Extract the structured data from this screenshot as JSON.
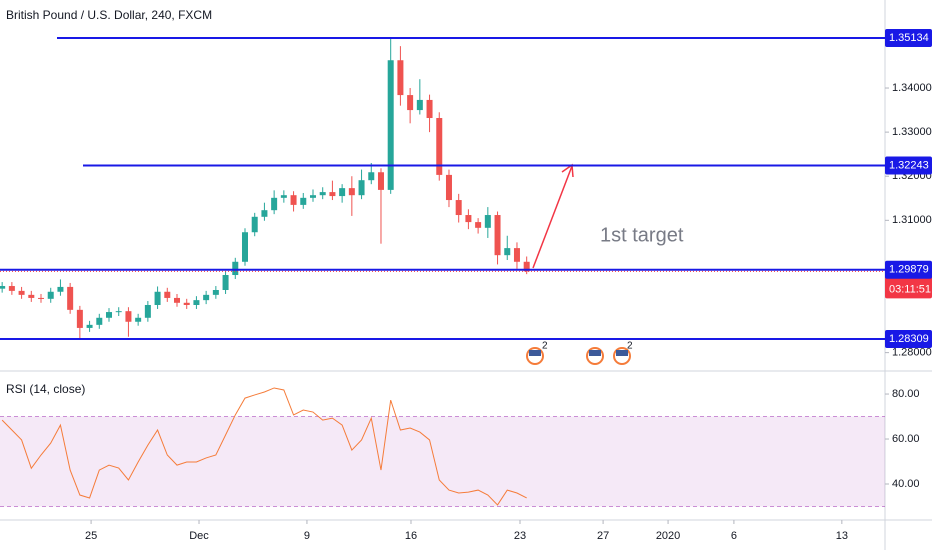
{
  "chart_data": [
    {
      "type": "candlestick",
      "title": "British Pound / U.S. Dollar, 240, FXCM",
      "x": [
        0.1,
        0.55,
        1,
        1.45,
        1.9,
        2.35,
        2.8,
        3.25,
        3.7,
        4.15,
        4.6,
        5.05,
        5.5,
        5.95,
        6.4,
        6.85,
        7.3,
        7.75,
        8.2,
        8.65,
        9.1,
        9.55,
        10,
        10.45,
        10.9,
        11.35,
        11.8,
        12.25,
        12.7,
        13.15,
        13.6,
        14.05,
        14.5,
        14.95,
        15.4,
        15.85,
        16.3,
        16.75,
        17.2,
        17.65,
        18.1,
        18.55,
        19,
        19.45,
        19.9,
        20.35,
        20.8,
        21.25,
        21.7,
        22.15,
        22.6,
        23.05,
        23.5,
        23.95,
        24.4
      ],
      "open": [
        1.2945,
        1.2951,
        1.294,
        1.2931,
        1.2924,
        1.2922,
        1.2938,
        1.2949,
        1.2897,
        1.2856,
        1.2863,
        1.2879,
        1.2892,
        1.2894,
        1.287,
        1.2879,
        1.2908,
        1.2938,
        1.2924,
        1.2913,
        1.2908,
        1.2919,
        1.2931,
        1.2942,
        1.2976,
        1.3006,
        1.3073,
        1.3108,
        1.3123,
        1.3151,
        1.3157,
        1.3135,
        1.3151,
        1.3157,
        1.3164,
        1.3155,
        1.3173,
        1.3157,
        1.3191,
        1.3209,
        1.3169,
        1.3463,
        1.3384,
        1.335,
        1.3373,
        1.3332,
        1.3203,
        1.3146,
        1.3112,
        1.3096,
        1.3083,
        1.3112,
        1.3021,
        1.3037,
        1.3006
      ],
      "high": [
        1.296,
        1.296,
        1.2949,
        1.294,
        1.2933,
        1.2947,
        1.2966,
        1.2958,
        1.2906,
        1.2872,
        1.2888,
        1.2901,
        1.2903,
        1.2903,
        1.2888,
        1.2917,
        1.295,
        1.2947,
        1.2933,
        1.2922,
        1.2928,
        1.294,
        1.2951,
        1.2985,
        1.3015,
        1.3082,
        1.3117,
        1.314,
        1.3168,
        1.3168,
        1.3166,
        1.3162,
        1.317,
        1.3175,
        1.319,
        1.3182,
        1.32,
        1.3215,
        1.323,
        1.3218,
        1.3513,
        1.3495,
        1.34,
        1.342,
        1.3385,
        1.3345,
        1.3215,
        1.316,
        1.3125,
        1.3105,
        1.313,
        1.312,
        1.3065,
        1.305,
        1.3018
      ],
      "low": [
        1.2936,
        1.2931,
        1.2922,
        1.2915,
        1.2913,
        1.2913,
        1.2929,
        1.2888,
        1.2832,
        1.2847,
        1.2854,
        1.287,
        1.2883,
        1.2836,
        1.2861,
        1.287,
        1.2899,
        1.2915,
        1.2904,
        1.2899,
        1.2899,
        1.291,
        1.2922,
        1.2933,
        1.2967,
        1.2997,
        1.3064,
        1.3099,
        1.3114,
        1.314,
        1.312,
        1.3126,
        1.3142,
        1.3148,
        1.3146,
        1.314,
        1.311,
        1.3148,
        1.3182,
        1.3047,
        1.316,
        1.336,
        1.332,
        1.334,
        1.33,
        1.319,
        1.313,
        1.3095,
        1.308,
        1.307,
        1.306,
        1.3,
        1.301,
        1.299,
        1.2978
      ],
      "close": [
        1.2951,
        1.294,
        1.2931,
        1.2924,
        1.2922,
        1.2938,
        1.2949,
        1.2897,
        1.2856,
        1.2863,
        1.2879,
        1.2892,
        1.2894,
        1.287,
        1.2879,
        1.2908,
        1.2938,
        1.2924,
        1.2913,
        1.2908,
        1.2919,
        1.2931,
        1.2942,
        1.2976,
        1.3006,
        1.3073,
        1.3108,
        1.3123,
        1.3151,
        1.3157,
        1.3135,
        1.3151,
        1.3157,
        1.3164,
        1.3155,
        1.3173,
        1.3157,
        1.3191,
        1.3209,
        1.3169,
        1.3463,
        1.3384,
        1.335,
        1.3373,
        1.3332,
        1.3203,
        1.3146,
        1.3112,
        1.3096,
        1.3083,
        1.3112,
        1.3021,
        1.3037,
        1.3006,
        1.29842
      ],
      "up_color": "#26a69a",
      "down_color": "#ef5350",
      "xlim": [
        0,
        41
      ],
      "ylim": [
        1.27606,
        1.35996
      ],
      "yticks": [
        {
          "value": 1.28,
          "label": "1.28000"
        },
        {
          "value": 1.31,
          "label": "1.31000"
        },
        {
          "value": 1.32,
          "label": "1.32000"
        },
        {
          "value": 1.33,
          "label": "1.33000"
        },
        {
          "value": 1.34,
          "label": "1.34000"
        }
      ],
      "xticks": [
        {
          "value": 4.22,
          "label": "25"
        },
        {
          "value": 9.22,
          "label": "Dec"
        },
        {
          "value": 14.22,
          "label": "9"
        },
        {
          "value": 19.04,
          "label": "16"
        },
        {
          "value": 24.09,
          "label": "23"
        },
        {
          "value": 27.94,
          "label": "27"
        },
        {
          "value": 30.95,
          "label": "2020"
        },
        {
          "value": 34.0,
          "label": "6"
        },
        {
          "value": 39.0,
          "label": "13"
        }
      ],
      "hlines": [
        1.35134,
        1.32243,
        1.29879,
        1.28309
      ],
      "hline_color": "#1919e6",
      "last_price": 1.29842,
      "countdown": "03:11:51",
      "last_color": "#f23645",
      "annotation": "1st target",
      "events": [
        "2",
        "2"
      ],
      "grid": false
    },
    {
      "type": "line",
      "title": "RSI (14, close)",
      "x": [
        0.1,
        0.55,
        1,
        1.45,
        1.9,
        2.35,
        2.8,
        3.25,
        3.7,
        4.15,
        4.6,
        5.05,
        5.5,
        5.95,
        6.4,
        6.85,
        7.3,
        7.75,
        8.2,
        8.65,
        9.1,
        9.55,
        10,
        10.45,
        10.9,
        11.35,
        11.8,
        12.25,
        12.7,
        13.15,
        13.6,
        14.05,
        14.5,
        14.95,
        15.4,
        15.85,
        16.3,
        16.75,
        17.2,
        17.65,
        18.1,
        18.55,
        19,
        19.45,
        19.9,
        20.35,
        20.8,
        21.25,
        21.7,
        22.15,
        22.6,
        23.05,
        23.5,
        23.95,
        24.4
      ],
      "values": [
        68.4,
        64,
        59.6,
        47,
        52.9,
        58.2,
        66.2,
        46.2,
        35.1,
        33.8,
        46.2,
        48.4,
        47.1,
        41.8,
        49.8,
        57.3,
        64,
        52.9,
        48.4,
        49.8,
        49.8,
        51.6,
        52.9,
        61.8,
        70.7,
        78.2,
        79.6,
        80.9,
        82.7,
        81.8,
        70.7,
        72.9,
        72,
        68.4,
        69.3,
        66.2,
        55.1,
        59.6,
        69.3,
        46.2,
        77.3,
        64,
        64.9,
        63.1,
        59.6,
        41.8,
        37.3,
        36,
        36.4,
        37.3,
        35.1,
        30.7,
        37.3,
        36,
        33.8
      ],
      "color": "#f57c3a",
      "band": [
        30,
        70
      ],
      "band_color": "#9c27b0",
      "xlim": [
        0,
        41
      ],
      "ylim": [
        24,
        89.8
      ],
      "yticks": [
        {
          "value": 40,
          "label": "40.00"
        },
        {
          "value": 60,
          "label": "60.00"
        },
        {
          "value": 80,
          "label": "80.00"
        }
      ]
    }
  ]
}
